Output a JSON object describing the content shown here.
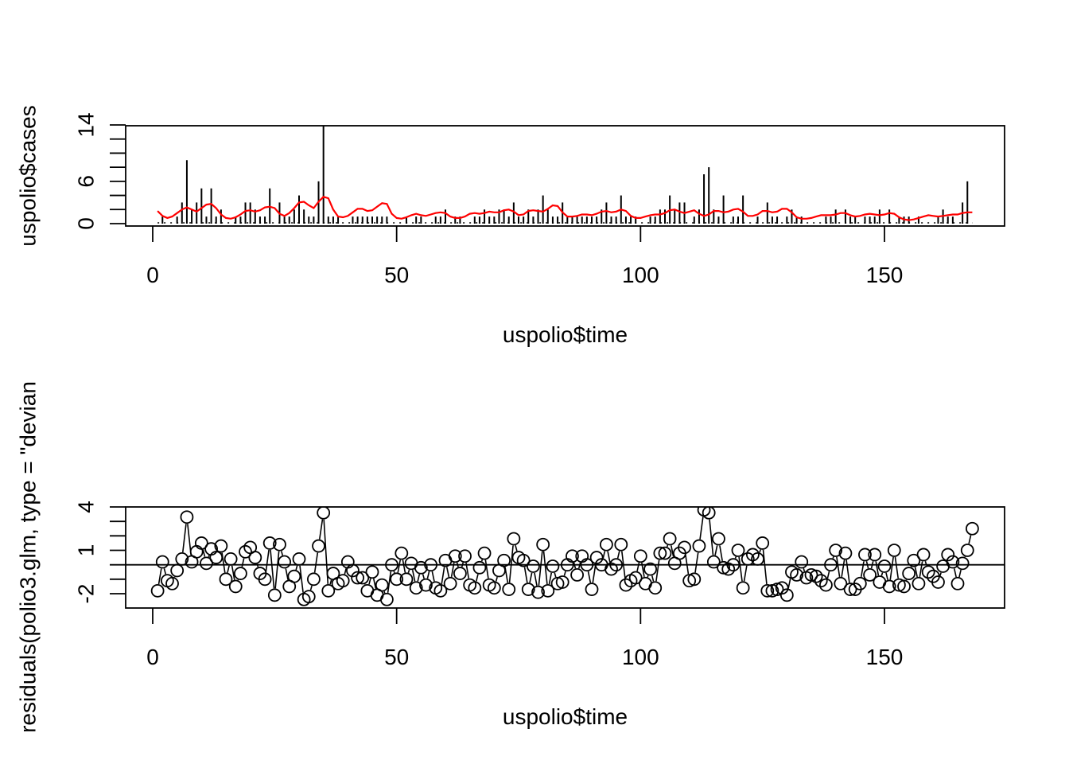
{
  "chart_data": [
    {
      "type": "line",
      "xlabel": "uspolio$time",
      "ylabel": "uspolio$cases",
      "xlim": [
        0,
        175
      ],
      "ylim": [
        0,
        14
      ],
      "xticks": [
        0,
        50,
        100,
        150
      ],
      "xtick_labels": [
        "0",
        "50",
        "100",
        "150"
      ],
      "yticks": [
        0,
        2,
        4,
        6,
        8,
        10,
        12,
        14
      ],
      "ytick_labels": [
        "0",
        "6",
        "14"
      ],
      "ytick_labeled_values": [
        0,
        6,
        14
      ],
      "grid": false,
      "series": [
        {
          "style": "histogram",
          "color": "#000000",
          "x_start": 1,
          "x_step": 1,
          "values": [
            0,
            1,
            0,
            0,
            1,
            3,
            9,
            2,
            3,
            5,
            1,
            5,
            1,
            2,
            0,
            0,
            1,
            1,
            3,
            3,
            2,
            1,
            1,
            5,
            0,
            3,
            1,
            1,
            2,
            4,
            2,
            1,
            1,
            6,
            14,
            1,
            1,
            1,
            0,
            0,
            1,
            1,
            1,
            1,
            1,
            1,
            1,
            1,
            0,
            0,
            0,
            1,
            0,
            1,
            1,
            0,
            0,
            1,
            1,
            2,
            0,
            1,
            1,
            0,
            0,
            1,
            1,
            2,
            1,
            1,
            2,
            2,
            1,
            3,
            1,
            1,
            2,
            1,
            2,
            4,
            2,
            1,
            1,
            3,
            1,
            1,
            1,
            1,
            1,
            1,
            1,
            2,
            3,
            1,
            1,
            4,
            1,
            1,
            1,
            0,
            0,
            1,
            1,
            2,
            2,
            4,
            2,
            3,
            3,
            0,
            1,
            2,
            7,
            8,
            2,
            1,
            4,
            0,
            1,
            1,
            4,
            0,
            0,
            1,
            0,
            3,
            1,
            1,
            0,
            1,
            2,
            1,
            1,
            0,
            0,
            0,
            0,
            1,
            1,
            2,
            0,
            2,
            1,
            1,
            0,
            1,
            1,
            1,
            2,
            0,
            2,
            0,
            1,
            1,
            1,
            0,
            1,
            0,
            0,
            0,
            1,
            2,
            1,
            1,
            0,
            3,
            6,
            0
          ]
        },
        {
          "style": "line",
          "color": "#ff0000",
          "x_start": 1,
          "x_step": 1,
          "values": [
            1.8,
            1.1,
            0.8,
            1.0,
            1.5,
            2.0,
            2.3,
            2.0,
            1.7,
            2.2,
            2.7,
            2.8,
            2.2,
            1.3,
            0.8,
            0.7,
            0.9,
            1.3,
            1.8,
            1.9,
            1.7,
            1.9,
            2.3,
            2.4,
            2.2,
            1.4,
            1.1,
            1.5,
            2.2,
            3.0,
            3.1,
            2.6,
            2.2,
            3.1,
            3.8,
            3.6,
            2.0,
            1.0,
            0.9,
            1.1,
            1.6,
            2.1,
            2.1,
            1.8,
            1.9,
            2.4,
            2.9,
            2.8,
            1.4,
            0.8,
            0.7,
            0.9,
            1.2,
            1.4,
            1.2,
            1.1,
            1.3,
            1.5,
            1.6,
            1.5,
            1.0,
            0.8,
            0.8,
            1.0,
            1.4,
            1.5,
            1.4,
            1.5,
            1.7,
            1.6,
            1.6,
            1.9,
            2.0,
            1.7,
            1.2,
            1.3,
            1.8,
            1.9,
            1.8,
            1.7,
            2.1,
            2.6,
            2.5,
            1.6,
            1.0,
            1.0,
            1.1,
            1.3,
            1.3,
            1.2,
            1.4,
            1.7,
            1.8,
            1.6,
            1.7,
            2.0,
            1.8,
            1.1,
            0.8,
            0.8,
            1.0,
            1.2,
            1.3,
            1.3,
            1.5,
            1.9,
            2.0,
            1.7,
            1.5,
            1.7,
            1.9,
            1.4,
            1.1,
            1.3,
            1.8,
            1.8,
            1.6,
            1.7,
            2.0,
            2.1,
            1.7,
            1.1,
            1.1,
            1.3,
            1.8,
            1.8,
            1.6,
            1.7,
            2.1,
            2.1,
            1.6,
            0.9,
            0.7,
            0.7,
            0.8,
            1.0,
            1.2,
            1.2,
            1.2,
            1.3,
            1.5,
            1.5,
            1.2,
            1.0,
            1.1,
            1.3,
            1.4,
            1.3,
            1.2,
            1.3,
            1.5,
            1.4,
            0.9,
            0.6,
            0.5,
            0.6,
            0.8,
            1.0,
            1.2,
            1.1,
            1.0,
            1.1,
            1.2,
            1.3,
            1.3,
            1.5,
            1.6,
            1.6
          ]
        },
        {
          "style": "dotted-zero",
          "color": "#000000",
          "values": []
        }
      ]
    },
    {
      "type": "scatter",
      "xlabel": "uspolio$time",
      "ylabel": "residuals(polio3.glm, type = \"devian",
      "xlim": [
        0,
        175
      ],
      "ylim": [
        -2.6,
        3.9
      ],
      "xticks": [
        0,
        50,
        100,
        150
      ],
      "xtick_labels": [
        "0",
        "50",
        "100",
        "150"
      ],
      "yticks": [
        -2,
        -1,
        0,
        1,
        2,
        3,
        4
      ],
      "ytick_labels": [
        "-2",
        "1",
        "4"
      ],
      "ytick_labeled_values": [
        -2,
        1,
        4
      ],
      "hline": 0,
      "grid": false,
      "series": [
        {
          "style": "points-with-segments",
          "color": "#000000",
          "x_start": 1,
          "x_step": 1,
          "values": [
            -1.8,
            0.2,
            -1.1,
            -1.3,
            -0.4,
            0.4,
            3.3,
            0.2,
            0.9,
            1.5,
            0.1,
            1.1,
            0.5,
            1.3,
            -1.0,
            0.4,
            -1.5,
            -0.6,
            0.9,
            1.2,
            0.5,
            -0.6,
            -1.0,
            1.5,
            -2.1,
            1.4,
            0.2,
            -1.5,
            -0.8,
            0.4,
            -2.4,
            -2.2,
            -1.0,
            1.3,
            3.6,
            -1.8,
            -0.6,
            -1.3,
            -1.1,
            0.2,
            -0.4,
            -0.9,
            -0.9,
            -1.8,
            -0.5,
            -2.1,
            -1.4,
            -2.4,
            0.0,
            -1.0,
            0.8,
            -1.0,
            0.1,
            -1.6,
            -0.2,
            -1.4,
            0.0,
            -1.6,
            -1.8,
            0.3,
            -1.3,
            0.6,
            -0.6,
            0.6,
            -1.4,
            -1.6,
            -0.2,
            0.8,
            -1.4,
            -1.6,
            -0.4,
            0.3,
            -1.7,
            1.8,
            0.5,
            0.3,
            -1.7,
            -0.1,
            -1.9,
            1.4,
            -1.8,
            -0.1,
            -1.3,
            -1.2,
            0.0,
            0.6,
            -0.7,
            0.6,
            0.0,
            -1.7,
            0.5,
            0.0,
            1.4,
            -0.3,
            0.0,
            1.4,
            -1.4,
            -1.1,
            -0.9,
            0.6,
            -1.3,
            -0.3,
            -1.6,
            0.8,
            0.8,
            1.8,
            0.1,
            0.8,
            1.2,
            -1.1,
            -1.0,
            1.3,
            3.8,
            3.6,
            0.2,
            1.8,
            -0.2,
            -0.3,
            0.0,
            1.0,
            -1.6,
            0.4,
            0.7,
            0.4,
            1.5,
            -1.8,
            -1.8,
            -1.7,
            -1.6,
            -2.1,
            -0.5,
            -0.7,
            0.2,
            -0.9,
            -0.7,
            -0.8,
            -1.1,
            -1.4,
            0.0,
            1.0,
            -1.3,
            0.8,
            -1.7,
            -1.7,
            -1.3,
            0.7,
            -0.7,
            0.7,
            -1.2,
            -0.1,
            -1.5,
            1.0,
            -1.4,
            -1.5,
            -0.6,
            0.3,
            -1.3,
            0.7,
            -0.5,
            -0.8,
            -1.2,
            -0.1,
            0.7,
            0.2,
            -1.3,
            0.1,
            1.0,
            2.5
          ]
        }
      ]
    }
  ]
}
